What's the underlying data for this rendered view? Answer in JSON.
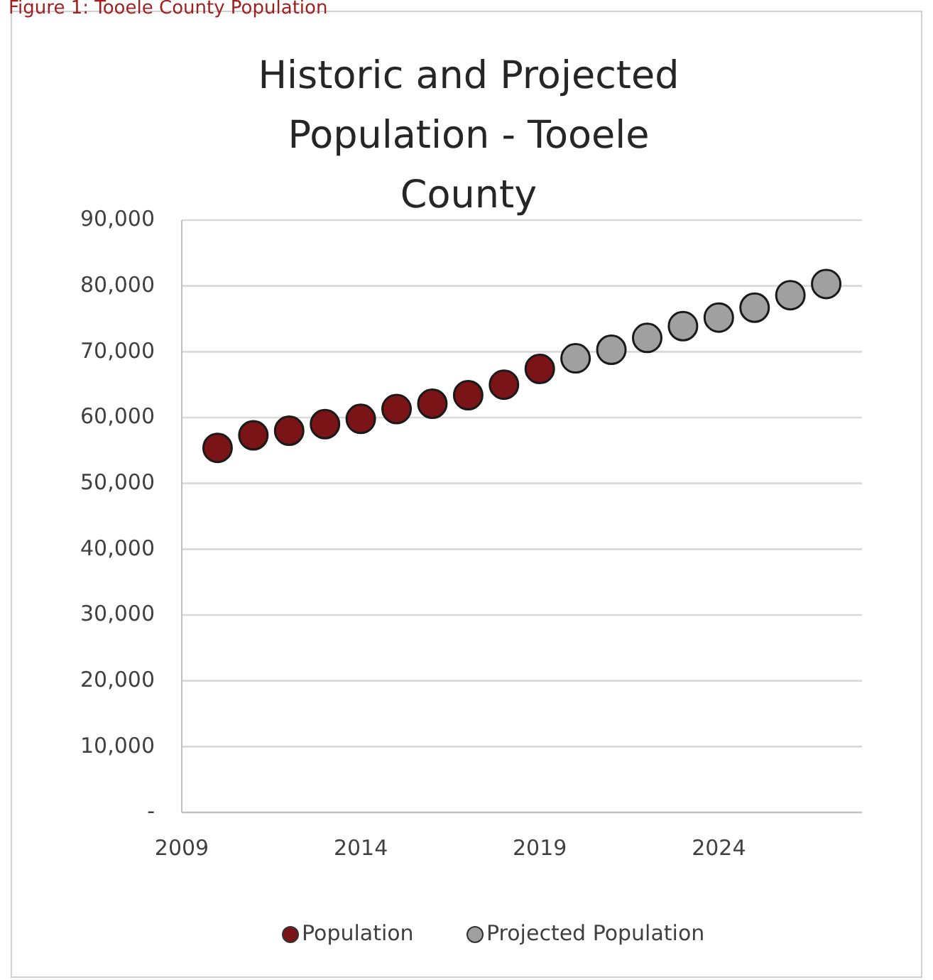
{
  "chart_data": {
    "type": "scatter",
    "title": "Historic and Projected Population - Tooele County",
    "annotations": [
      "Figure 1: Tooele County Population"
    ],
    "series": [
      {
        "name": "Population",
        "color": "#7b1416",
        "x": [
          2010,
          2011,
          2012,
          2013,
          2014,
          2015,
          2016,
          2017,
          2018,
          2019
        ],
        "values": [
          55400,
          57300,
          58000,
          59000,
          59800,
          61300,
          62100,
          63400,
          65000,
          67400
        ]
      },
      {
        "name": "Projected Population",
        "color": "#a0a0a0",
        "x": [
          2020,
          2021,
          2022,
          2023,
          2024,
          2025,
          2026,
          2027
        ],
        "values": [
          69000,
          70300,
          72100,
          73900,
          75200,
          76700,
          78600,
          80300
        ]
      }
    ],
    "xlim": [
      2009,
      2028
    ],
    "xticks": [
      2009,
      2014,
      2019,
      2024
    ],
    "ylim": [
      0,
      90000
    ],
    "yticks": [
      {
        "value": 0,
        "label": "-"
      },
      {
        "value": 10000,
        "label": "10,000"
      },
      {
        "value": 20000,
        "label": "20,000"
      },
      {
        "value": 30000,
        "label": "30,000"
      },
      {
        "value": 40000,
        "label": "40,000"
      },
      {
        "value": 50000,
        "label": "50,000"
      },
      {
        "value": 60000,
        "label": "60,000"
      },
      {
        "value": 70000,
        "label": "70,000"
      },
      {
        "value": 80000,
        "label": "80,000"
      },
      {
        "value": 90000,
        "label": "90,000"
      }
    ],
    "grid": "y",
    "legend": "bottom",
    "marker": "circle"
  }
}
